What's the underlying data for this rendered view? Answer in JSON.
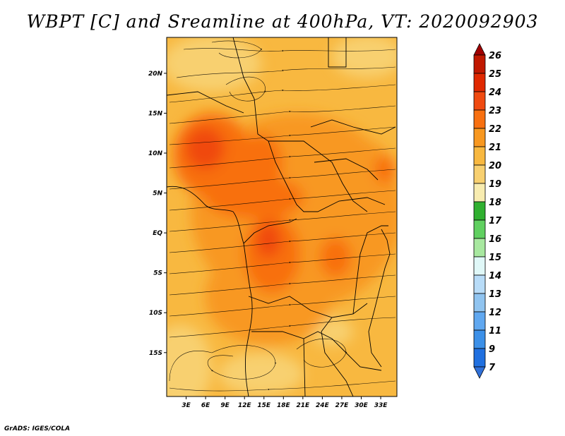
{
  "title": "WBPT [C] and Sreamline at 400hPa, VT: 2020092903",
  "footer": "GrADS: IGES/COLA",
  "chart_data": {
    "type": "heatmap",
    "title": "WBPT [C] and Sreamline at 400hPa, VT: 2020092903",
    "variable": "WBPT [C]",
    "level": "400hPa",
    "valid_time": "2020092903",
    "lon_range": [
      0,
      35.5
    ],
    "lat_range": [
      -20.5,
      24.5
    ],
    "x_ticks": [
      "3E",
      "6E",
      "9E",
      "12E",
      "15E",
      "18E",
      "21E",
      "24E",
      "27E",
      "30E",
      "33E"
    ],
    "x_tick_values": [
      3,
      6,
      9,
      12,
      15,
      18,
      21,
      24,
      27,
      30,
      33
    ],
    "y_ticks": [
      "20N",
      "15N",
      "10N",
      "5N",
      "EQ",
      "5S",
      "10S",
      "15S"
    ],
    "y_tick_values": [
      20,
      15,
      10,
      5,
      0,
      -5,
      -10,
      -15
    ],
    "colorbar": {
      "labels": [
        "26",
        "25",
        "24",
        "23",
        "22",
        "21",
        "20",
        "19",
        "18",
        "17",
        "16",
        "15",
        "14",
        "13",
        "12",
        "11",
        "9",
        "7"
      ],
      "colors": [
        "#a00000",
        "#c01800",
        "#e02800",
        "#f04a10",
        "#f87010",
        "#f89820",
        "#f8b840",
        "#f8d070",
        "#f8ecb0",
        "#30b030",
        "#60d060",
        "#a8e8a0",
        "#e0f8f8",
        "#b8dcf8",
        "#90c4f0",
        "#60a8f0",
        "#3c90e8",
        "#2070e0",
        "#3070d8"
      ]
    },
    "field_zones": [
      {
        "level": "20-21",
        "description": "background over most of domain"
      },
      {
        "level": "21-22",
        "description": "broad warm band over central Africa"
      },
      {
        "level": "22-23",
        "description": "West Africa coast and Congo basin maxima"
      },
      {
        "level": "19-20",
        "description": "northern Sahara and southwest Atlantic margins"
      }
    ]
  }
}
